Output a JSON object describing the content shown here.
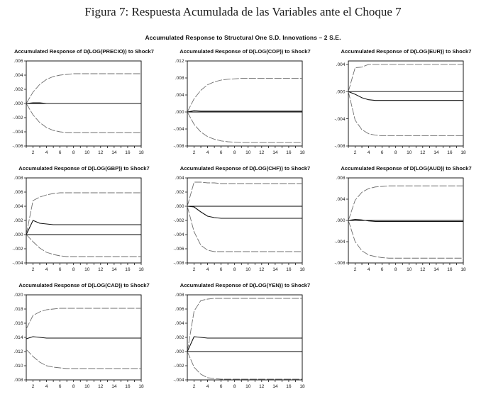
{
  "page": {
    "figure_title": "Figura 7: Respuesta Acumulada de las Variables ante el Choque 7",
    "subtitle": "Accumulated Response to Structural One S.D. Innovations – 2 S.E."
  },
  "colors": {
    "line": "#111111",
    "band": "#6f6f6f",
    "axis": "#000000"
  },
  "chart_data": [
    {
      "type": "line",
      "title": "Accumulated Response of D(LOG(PRECIO)) to Shock7",
      "x_range": [
        1,
        18
      ],
      "xticks": [
        2,
        4,
        6,
        8,
        10,
        12,
        14,
        16,
        18
      ],
      "ylim": [
        -0.006,
        0.006
      ],
      "yticks": [
        {
          "v": 0.006,
          "label": ".006"
        },
        {
          "v": 0.004,
          "label": ".004"
        },
        {
          "v": 0.002,
          "label": ".002"
        },
        {
          "v": 0.0,
          "label": ".000"
        },
        {
          "v": -0.002,
          "label": "-.002"
        },
        {
          "v": -0.004,
          "label": "-.004"
        },
        {
          "v": -0.006,
          "label": "-.006"
        }
      ],
      "series": [
        {
          "name": "upper-band",
          "values": [
            0,
            0.0016,
            0.0027,
            0.0034,
            0.0038,
            0.004,
            0.0041,
            0.0042,
            0.0042,
            0.0042,
            0.0042,
            0.0042,
            0.0042,
            0.0042,
            0.0042,
            0.0042,
            0.0042,
            0.0042
          ]
        },
        {
          "name": "response",
          "values": [
            0,
            0.0001,
            0.0001,
            0,
            0,
            0,
            0,
            0,
            0,
            0,
            0,
            0,
            0,
            0,
            0,
            0,
            0,
            0
          ]
        },
        {
          "name": "lower-band",
          "values": [
            0,
            -0.0016,
            -0.0027,
            -0.0034,
            -0.0038,
            -0.004,
            -0.0041,
            -0.0041,
            -0.0041,
            -0.0041,
            -0.0041,
            -0.0041,
            -0.0041,
            -0.0041,
            -0.0041,
            -0.0041,
            -0.0041,
            -0.0041
          ]
        }
      ]
    },
    {
      "type": "line",
      "title": "Accumulated Response of D(LOG(COP)) to Shock7",
      "x_range": [
        1,
        18
      ],
      "xticks": [
        2,
        4,
        6,
        8,
        10,
        12,
        14,
        16,
        18
      ],
      "ylim": [
        -0.008,
        0.012
      ],
      "yticks": [
        {
          "v": 0.012,
          "label": ".012"
        },
        {
          "v": 0.008,
          "label": ".008"
        },
        {
          "v": 0.004,
          "label": ".004"
        },
        {
          "v": 0.0,
          "label": ".000"
        },
        {
          "v": -0.004,
          "label": "-.004"
        },
        {
          "v": -0.008,
          "label": "-.008"
        }
      ],
      "series": [
        {
          "name": "upper-band",
          "values": [
            0,
            0.0031,
            0.0051,
            0.0064,
            0.0071,
            0.0075,
            0.0077,
            0.0078,
            0.0079,
            0.0079,
            0.0079,
            0.0079,
            0.0079,
            0.0079,
            0.0079,
            0.0079,
            0.0079,
            0.0079
          ]
        },
        {
          "name": "response",
          "values": [
            0,
            0.0003,
            0.0002,
            0.0002,
            0.0002,
            0.0002,
            0.0002,
            0.0002,
            0.0002,
            0.0002,
            0.0002,
            0.0002,
            0.0002,
            0.0002,
            0.0002,
            0.0002,
            0.0002,
            0.0002
          ]
        },
        {
          "name": "lower-band",
          "values": [
            0,
            -0.0029,
            -0.0047,
            -0.0058,
            -0.0064,
            -0.0068,
            -0.007,
            -0.0071,
            -0.0072,
            -0.0072,
            -0.0072,
            -0.0072,
            -0.0072,
            -0.0072,
            -0.0072,
            -0.0072,
            -0.0072,
            -0.0072
          ]
        }
      ]
    },
    {
      "type": "line",
      "title": "Accumulated Response of D(LOG(EUR)) to Shock7",
      "x_range": [
        1,
        18
      ],
      "xticks": [
        2,
        4,
        6,
        8,
        10,
        12,
        14,
        16,
        18
      ],
      "ylim": [
        -0.008,
        0.0045
      ],
      "yticks": [
        {
          "v": 0.004,
          "label": ".004"
        },
        {
          "v": 0.0,
          "label": ".000"
        },
        {
          "v": -0.004,
          "label": "-.004"
        },
        {
          "v": -0.008,
          "label": "-.008"
        }
      ],
      "series": [
        {
          "name": "upper-band",
          "values": [
            0,
            0.0035,
            0.0036,
            0.004,
            0.004,
            0.004,
            0.004,
            0.004,
            0.004,
            0.004,
            0.004,
            0.004,
            0.004,
            0.004,
            0.004,
            0.004,
            0.004,
            0.004
          ]
        },
        {
          "name": "response",
          "values": [
            0,
            -0.0004,
            -0.0009,
            -0.0012,
            -0.0013,
            -0.0013,
            -0.0013,
            -0.0013,
            -0.0013,
            -0.0013,
            -0.0013,
            -0.0013,
            -0.0013,
            -0.0013,
            -0.0013,
            -0.0013,
            -0.0013,
            -0.0013
          ]
        },
        {
          "name": "lower-band",
          "values": [
            0,
            -0.0042,
            -0.0056,
            -0.0062,
            -0.0064,
            -0.0065,
            -0.0065,
            -0.0065,
            -0.0065,
            -0.0065,
            -0.0065,
            -0.0065,
            -0.0065,
            -0.0065,
            -0.0065,
            -0.0065,
            -0.0065,
            -0.0065
          ]
        }
      ]
    },
    {
      "type": "line",
      "title": "Accumulated Response of D(LOG(GBP)) to Shock7",
      "x_range": [
        1,
        18
      ],
      "xticks": [
        2,
        4,
        6,
        8,
        10,
        12,
        14,
        16,
        18
      ],
      "ylim": [
        -0.004,
        0.008
      ],
      "yticks": [
        {
          "v": 0.008,
          "label": ".008"
        },
        {
          "v": 0.006,
          "label": ".006"
        },
        {
          "v": 0.004,
          "label": ".004"
        },
        {
          "v": 0.002,
          "label": ".002"
        },
        {
          "v": 0.0,
          "label": ".000"
        },
        {
          "v": -0.002,
          "label": "-.002"
        },
        {
          "v": -0.004,
          "label": "-.004"
        }
      ],
      "series": [
        {
          "name": "upper-band",
          "values": [
            0,
            0.0048,
            0.0053,
            0.0056,
            0.0058,
            0.0059,
            0.0059,
            0.0059,
            0.0059,
            0.0059,
            0.0059,
            0.0059,
            0.0059,
            0.0059,
            0.0059,
            0.0059,
            0.0059,
            0.0059
          ]
        },
        {
          "name": "response",
          "values": [
            0,
            0.002,
            0.0016,
            0.0015,
            0.0014,
            0.0014,
            0.0014,
            0.0014,
            0.0014,
            0.0014,
            0.0014,
            0.0014,
            0.0014,
            0.0014,
            0.0014,
            0.0014,
            0.0014,
            0.0014
          ]
        },
        {
          "name": "lower-band",
          "values": [
            0,
            -0.001,
            -0.0019,
            -0.0025,
            -0.0028,
            -0.003,
            -0.0031,
            -0.0031,
            -0.0031,
            -0.0031,
            -0.0031,
            -0.0031,
            -0.0031,
            -0.0031,
            -0.0031,
            -0.0031,
            -0.0031,
            -0.0031
          ]
        }
      ]
    },
    {
      "type": "line",
      "title": "Accumulated Response of D(LOG(CHF)) to Shock7",
      "x_range": [
        1,
        18
      ],
      "xticks": [
        2,
        4,
        6,
        8,
        10,
        12,
        14,
        16,
        18
      ],
      "ylim": [
        -0.008,
        0.004
      ],
      "yticks": [
        {
          "v": 0.004,
          "label": ".004"
        },
        {
          "v": 0.002,
          "label": ".002"
        },
        {
          "v": 0.0,
          "label": ".000"
        },
        {
          "v": -0.002,
          "label": "-.002"
        },
        {
          "v": -0.004,
          "label": "-.004"
        },
        {
          "v": -0.006,
          "label": "-.006"
        },
        {
          "v": -0.008,
          "label": "-.008"
        }
      ],
      "series": [
        {
          "name": "upper-band",
          "values": [
            0,
            0.0034,
            0.0034,
            0.0033,
            0.0033,
            0.0032,
            0.0032,
            0.0032,
            0.0032,
            0.0032,
            0.0032,
            0.0032,
            0.0032,
            0.0032,
            0.0032,
            0.0032,
            0.0032,
            0.0032
          ]
        },
        {
          "name": "response",
          "values": [
            0,
            -0.0001,
            -0.0008,
            -0.0014,
            -0.0016,
            -0.0017,
            -0.0017,
            -0.0017,
            -0.0017,
            -0.0017,
            -0.0017,
            -0.0017,
            -0.0017,
            -0.0017,
            -0.0017,
            -0.0017,
            -0.0017,
            -0.0017
          ]
        },
        {
          "name": "lower-band",
          "values": [
            0,
            -0.0036,
            -0.0055,
            -0.0062,
            -0.0064,
            -0.0064,
            -0.0064,
            -0.0064,
            -0.0064,
            -0.0064,
            -0.0064,
            -0.0064,
            -0.0064,
            -0.0064,
            -0.0064,
            -0.0064,
            -0.0064,
            -0.0064
          ]
        }
      ]
    },
    {
      "type": "line",
      "title": "Accumulated Response of D(LOG(AUD)) to Shock7",
      "x_range": [
        1,
        18
      ],
      "xticks": [
        2,
        4,
        6,
        8,
        10,
        12,
        14,
        16,
        18
      ],
      "ylim": [
        -0.008,
        0.008
      ],
      "yticks": [
        {
          "v": 0.008,
          "label": ".008"
        },
        {
          "v": 0.004,
          "label": ".004"
        },
        {
          "v": 0.0,
          "label": ".000"
        },
        {
          "v": -0.004,
          "label": "-.004"
        },
        {
          "v": -0.008,
          "label": "-.008"
        }
      ],
      "series": [
        {
          "name": "upper-band",
          "values": [
            0,
            0.0038,
            0.0053,
            0.006,
            0.0063,
            0.0064,
            0.0065,
            0.0065,
            0.0065,
            0.0065,
            0.0065,
            0.0065,
            0.0065,
            0.0065,
            0.0065,
            0.0065,
            0.0065,
            0.0065
          ]
        },
        {
          "name": "response",
          "values": [
            0,
            0.0002,
            0.0001,
            -0.0001,
            -0.0002,
            -0.0002,
            -0.0002,
            -0.0002,
            -0.0002,
            -0.0002,
            -0.0002,
            -0.0002,
            -0.0002,
            -0.0002,
            -0.0002,
            -0.0002,
            -0.0002,
            -0.0002
          ]
        },
        {
          "name": "lower-band",
          "values": [
            0,
            -0.004,
            -0.0057,
            -0.0065,
            -0.0068,
            -0.007,
            -0.0071,
            -0.0071,
            -0.0071,
            -0.0071,
            -0.0071,
            -0.0071,
            -0.0071,
            -0.0071,
            -0.0071,
            -0.0071,
            -0.0071,
            -0.0071
          ]
        }
      ]
    },
    {
      "type": "line",
      "title": "Accumulated Response of D(LOG(CAD)) to Shock7",
      "x_range": [
        1,
        18
      ],
      "xticks": [
        2,
        4,
        6,
        8,
        10,
        12,
        14,
        16,
        18
      ],
      "ylim": [
        0.008,
        0.02
      ],
      "yticks": [
        {
          "v": 0.02,
          "label": ".020"
        },
        {
          "v": 0.018,
          "label": ".018"
        },
        {
          "v": 0.016,
          "label": ".016"
        },
        {
          "v": 0.014,
          "label": ".014"
        },
        {
          "v": 0.012,
          "label": ".012"
        },
        {
          "v": 0.01,
          "label": ".010"
        },
        {
          "v": 0.008,
          "label": ".008"
        }
      ],
      "series": [
        {
          "name": "upper-band",
          "values": [
            0.0152,
            0.0171,
            0.0176,
            0.0179,
            0.018,
            0.0181,
            0.0181,
            0.0181,
            0.0181,
            0.0181,
            0.0181,
            0.0181,
            0.0181,
            0.0181,
            0.0181,
            0.0181,
            0.0181,
            0.0181
          ]
        },
        {
          "name": "response",
          "values": [
            0.0138,
            0.0141,
            0.014,
            0.0139,
            0.0139,
            0.0139,
            0.0139,
            0.0139,
            0.0139,
            0.0139,
            0.0139,
            0.0139,
            0.0139,
            0.0139,
            0.0139,
            0.0139,
            0.0139,
            0.0139
          ]
        },
        {
          "name": "lower-band",
          "values": [
            0.0123,
            0.0113,
            0.0105,
            0.01,
            0.0098,
            0.0097,
            0.0096,
            0.0096,
            0.0096,
            0.0096,
            0.0096,
            0.0096,
            0.0096,
            0.0096,
            0.0096,
            0.0096,
            0.0096,
            0.0096
          ]
        }
      ]
    },
    {
      "type": "line",
      "title": "Accumulated Response of D(LOG(YEN)) to Shock7",
      "x_range": [
        1,
        18
      ],
      "xticks": [
        2,
        4,
        6,
        8,
        10,
        12,
        14,
        16,
        18
      ],
      "ylim": [
        -0.004,
        0.008
      ],
      "yticks": [
        {
          "v": 0.008,
          "label": ".008"
        },
        {
          "v": 0.006,
          "label": ".006"
        },
        {
          "v": 0.004,
          "label": ".004"
        },
        {
          "v": 0.002,
          "label": ".002"
        },
        {
          "v": 0.0,
          "label": ".000"
        },
        {
          "v": -0.002,
          "label": "-.002"
        },
        {
          "v": -0.004,
          "label": "-.004"
        }
      ],
      "series": [
        {
          "name": "upper-band",
          "values": [
            0,
            0.0057,
            0.0072,
            0.0074,
            0.0075,
            0.0075,
            0.0075,
            0.0075,
            0.0075,
            0.0075,
            0.0075,
            0.0075,
            0.0075,
            0.0075,
            0.0075,
            0.0075,
            0.0075,
            0.0075
          ]
        },
        {
          "name": "response",
          "values": [
            0,
            0.0021,
            0.002,
            0.0019,
            0.0019,
            0.0019,
            0.0019,
            0.0019,
            0.0019,
            0.0019,
            0.0019,
            0.0019,
            0.0019,
            0.0019,
            0.0019,
            0.0019,
            0.0019,
            0.0019
          ]
        },
        {
          "name": "lower-band",
          "values": [
            0,
            -0.0022,
            -0.0032,
            -0.0037,
            -0.0038,
            -0.0039,
            -0.0039,
            -0.0039,
            -0.0039,
            -0.0039,
            -0.0039,
            -0.0039,
            -0.0039,
            -0.0039,
            -0.0039,
            -0.0039,
            -0.0039,
            -0.0039
          ]
        }
      ]
    }
  ]
}
